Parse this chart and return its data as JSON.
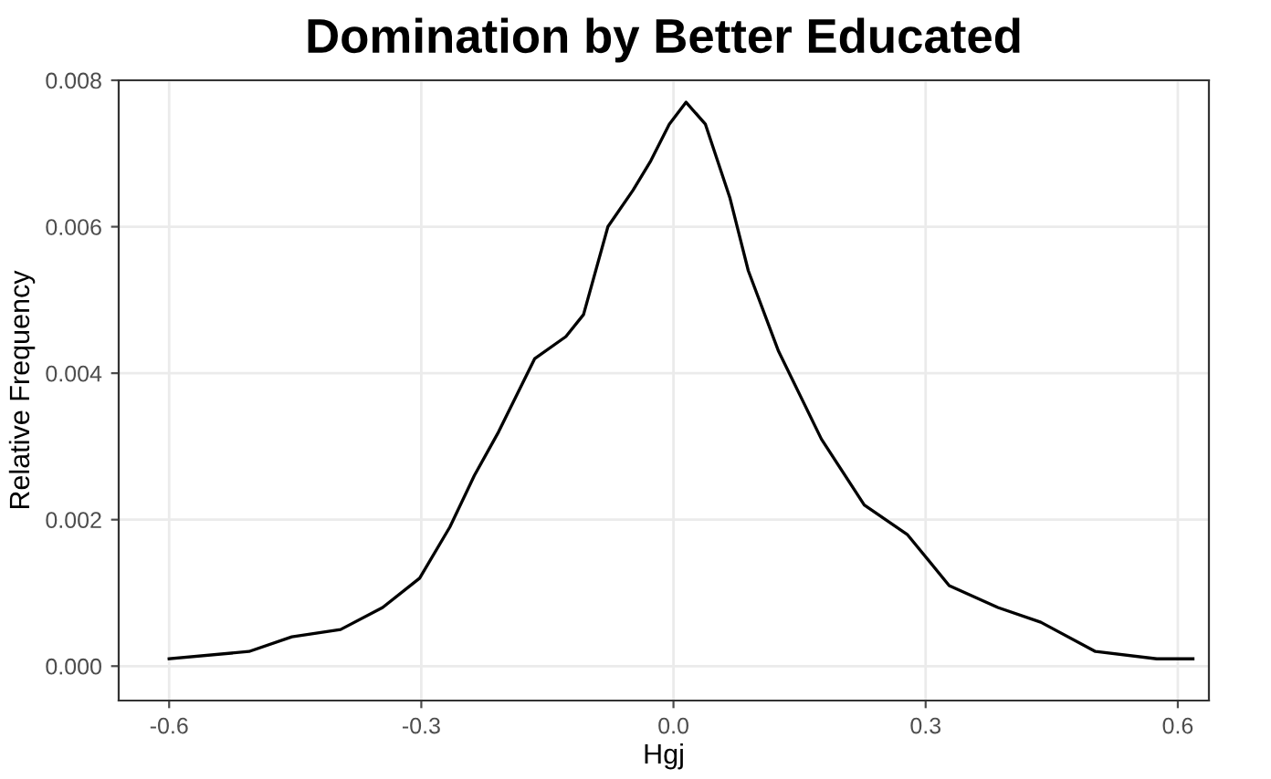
{
  "chart_data": {
    "type": "line",
    "title": "Domination by Better Educated",
    "xlabel": "Hgj",
    "ylabel": "Relative Frequency",
    "series": [
      {
        "color": "#000000",
        "x": [
          -0.6,
          -0.505,
          -0.454,
          -0.396,
          -0.346,
          -0.302,
          -0.266,
          -0.237,
          -0.208,
          -0.165,
          -0.128,
          -0.107,
          -0.078,
          -0.048,
          -0.027,
          -0.005,
          0.015,
          0.038,
          0.067,
          0.089,
          0.125,
          0.176,
          0.227,
          0.278,
          0.328,
          0.386,
          0.437,
          0.502,
          0.575,
          0.618
        ],
        "values": [
          0.0001,
          0.0002,
          0.0004,
          0.0005,
          0.0008,
          0.0012,
          0.0019,
          0.0026,
          0.0032,
          0.0042,
          0.0045,
          0.0048,
          0.006,
          0.0065,
          0.0069,
          0.0074,
          0.0077,
          0.0074,
          0.0064,
          0.0054,
          0.0043,
          0.0031,
          0.0022,
          0.0018,
          0.0011,
          0.0008,
          0.0006,
          0.0002,
          0.0001,
          0.0001
        ]
      }
    ],
    "xlim": [
      -0.66,
      0.637
    ],
    "ylim": [
      -0.00047,
      0.008
    ],
    "xticks": [
      {
        "value": -0.6,
        "label": "-0.6"
      },
      {
        "value": -0.3,
        "label": "-0.3"
      },
      {
        "value": 0,
        "label": "0.0"
      },
      {
        "value": 0.3,
        "label": "0.3"
      },
      {
        "value": 0.6,
        "label": "0.6"
      }
    ],
    "yticks": [
      {
        "value": 0,
        "label": "0.000"
      },
      {
        "value": 0.002,
        "label": "0.002"
      },
      {
        "value": 0.004,
        "label": "0.004"
      },
      {
        "value": 0.006,
        "label": "0.006"
      },
      {
        "value": 0.008,
        "label": "0.008"
      }
    ],
    "grid": true,
    "marker": "none",
    "line_style": "solid"
  }
}
